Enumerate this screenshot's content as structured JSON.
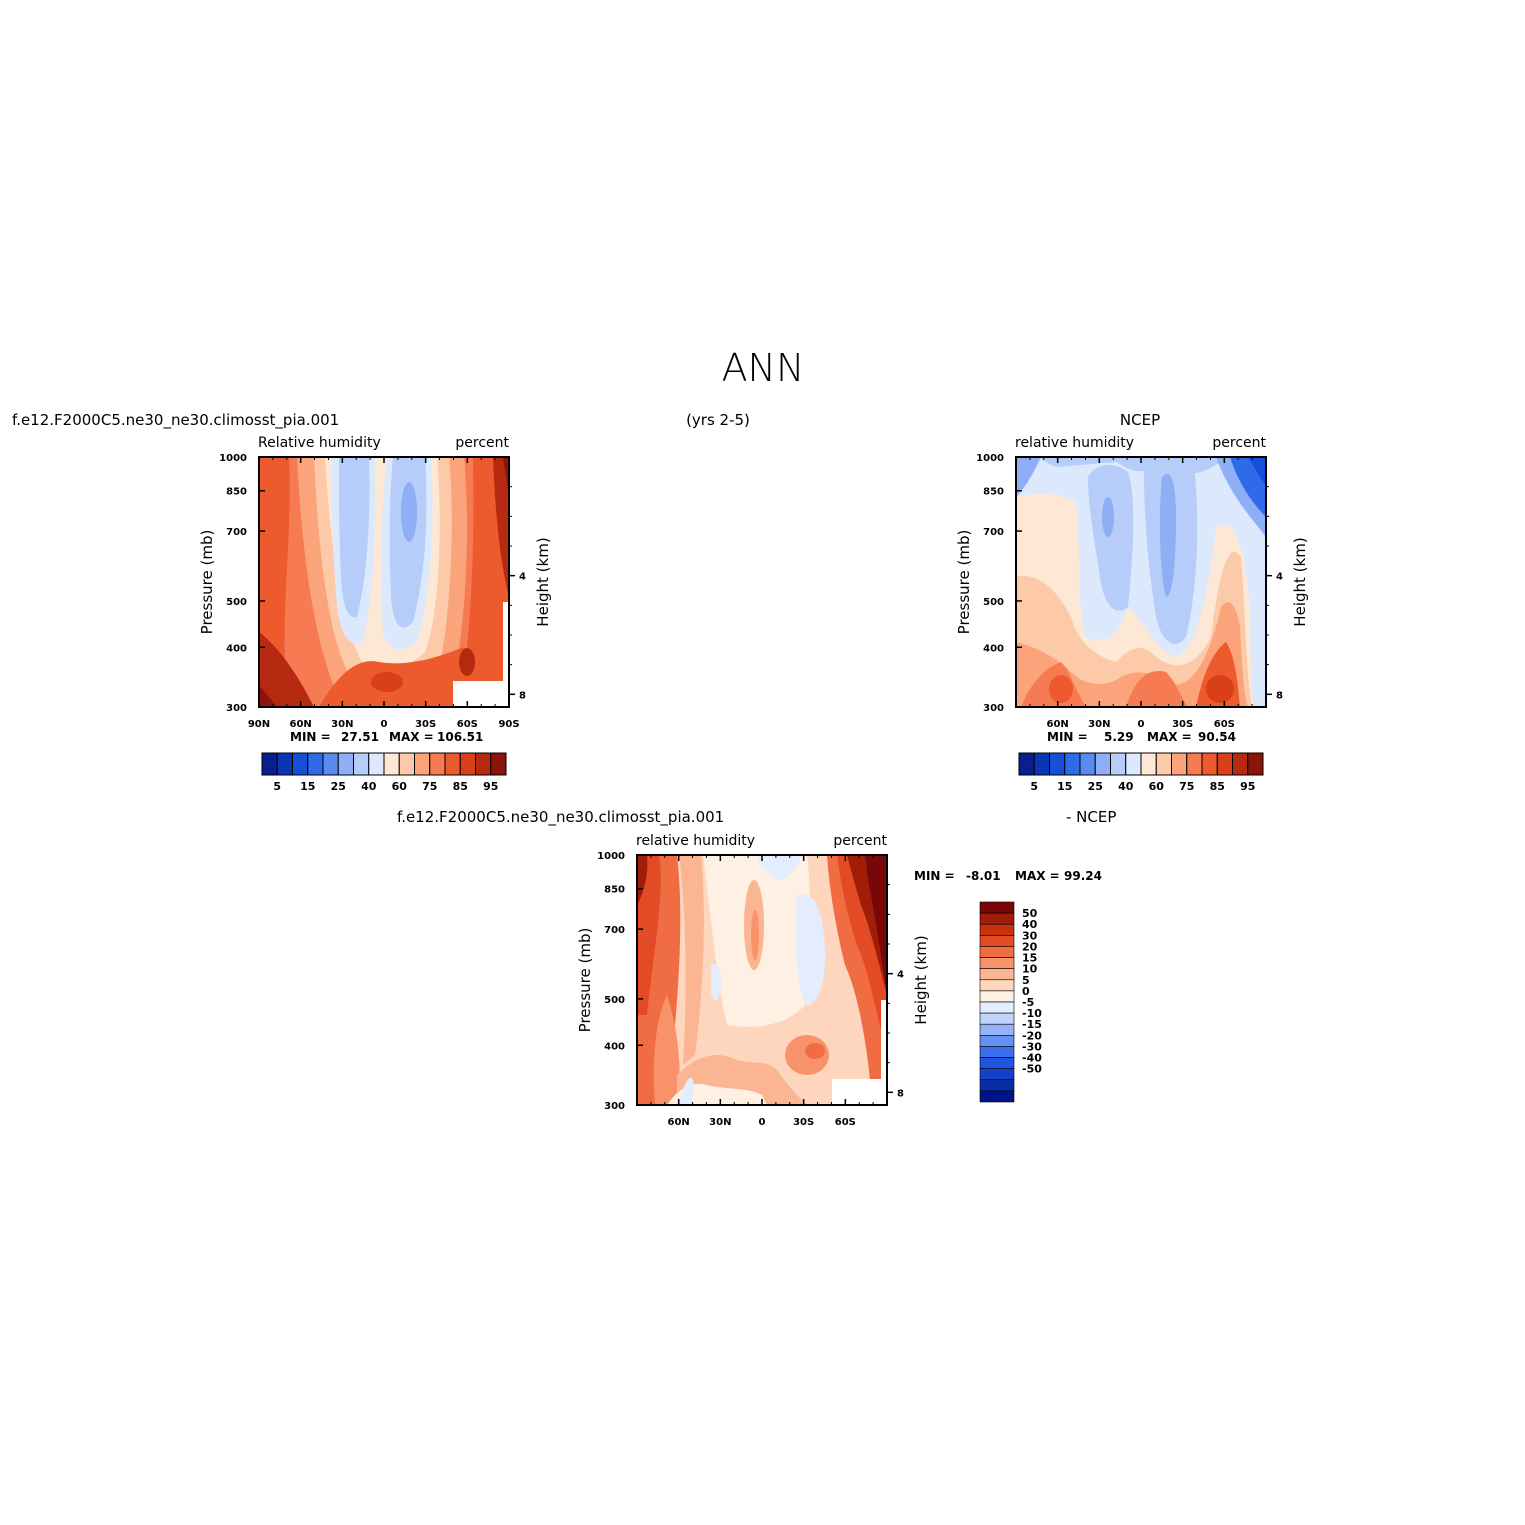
{
  "figure": {
    "title": "ANN",
    "center_label": "(yrs 2-5)",
    "colors": {
      "abs_levels": [
        "#0a1f8f",
        "#0b36b3",
        "#1650d8",
        "#2f6be8",
        "#5a8cf0",
        "#8eaef5",
        "#b6cdf9",
        "#dce9fc",
        "#fde8d6",
        "#fccaa8",
        "#fba47b",
        "#f67b52",
        "#ec5a2e",
        "#d9401a",
        "#b52a10",
        "#8c140a"
      ],
      "diff_levels": [
        "#00138a",
        "#0a2ea8",
        "#1341c9",
        "#1f55e0",
        "#3a6eed",
        "#6391f3",
        "#94b3f7",
        "#c1d5fb",
        "#e3edfd",
        "#fff0e4",
        "#fdd6bd",
        "#fbb592",
        "#f8926b",
        "#f06c43",
        "#e24b25",
        "#c7320f",
        "#a01e08",
        "#780808"
      ]
    }
  },
  "chart_data": [
    {
      "id": "model",
      "type": "heatmap",
      "case_title": "f.e12.F2000C5.ne30_ne30.climosst_pia.001",
      "variable_label": "Relative humidity",
      "units_label": "percent",
      "ylabel": "Pressure (mb)",
      "y2label": "Height (km)",
      "yticks": [
        "300",
        "400",
        "500",
        "700",
        "850",
        "1000"
      ],
      "y2ticks": [
        "8",
        "4"
      ],
      "xticks": [
        "90N",
        "60N",
        "30N",
        "0",
        "30S",
        "60S",
        "90S"
      ],
      "x_range": [
        90,
        -90
      ],
      "y_range": [
        1000,
        300
      ],
      "min_label": "MIN =",
      "min_value": "27.51",
      "max_label": "MAX =",
      "max_value": "106.51",
      "colorbar_labels": [
        "5",
        "15",
        "25",
        "40",
        "60",
        "75",
        "85",
        "95"
      ]
    },
    {
      "id": "obs",
      "type": "heatmap",
      "case_title": "NCEP",
      "variable_label": "relative humidity",
      "units_label": "percent",
      "ylabel": "Pressure (mb)",
      "y2label": "Height (km)",
      "yticks": [
        "300",
        "400",
        "500",
        "700",
        "850",
        "1000"
      ],
      "y2ticks": [
        "8",
        "4"
      ],
      "xticks": [
        "60N",
        "30N",
        "0",
        "30S",
        "60S"
      ],
      "x_range": [
        90,
        -90
      ],
      "y_range": [
        1000,
        300
      ],
      "min_label": "MIN =",
      "min_value": "5.29",
      "max_label": "MAX =",
      "max_value": "90.54",
      "colorbar_labels": [
        "5",
        "15",
        "25",
        "40",
        "60",
        "75",
        "85",
        "95"
      ]
    },
    {
      "id": "diff",
      "type": "heatmap",
      "case_title": "f.e12.F2000C5.ne30_ne30.climosst_pia.001",
      "minus_label": "- NCEP",
      "variable_label": "relative humidity",
      "units_label": "percent",
      "ylabel": "Pressure (mb)",
      "y2label": "Height (km)",
      "yticks": [
        "300",
        "400",
        "500",
        "700",
        "850",
        "1000"
      ],
      "y2ticks": [
        "8",
        "4"
      ],
      "xticks": [
        "60N",
        "30N",
        "0",
        "30S",
        "60S"
      ],
      "x_range": [
        90,
        -90
      ],
      "y_range": [
        1000,
        300
      ],
      "min_label": "MIN =",
      "min_value": "-8.01",
      "max_label": "MAX =",
      "max_value": "99.24",
      "colorbar_labels": [
        "50",
        "40",
        "30",
        "20",
        "15",
        "10",
        "5",
        "0",
        "-5",
        "-10",
        "-15",
        "-20",
        "-30",
        "-40",
        "-50"
      ]
    }
  ]
}
